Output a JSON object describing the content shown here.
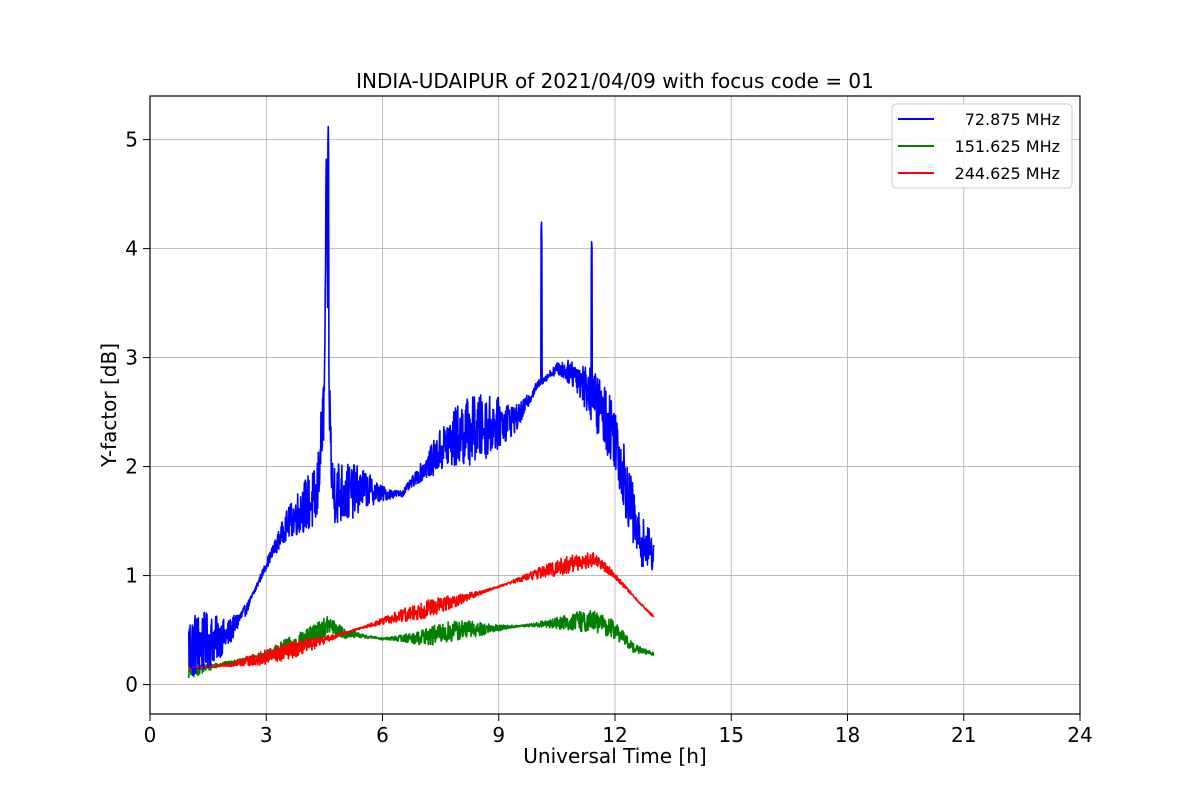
{
  "chart_data": {
    "type": "line",
    "title": "INDIA-UDAIPUR of 2021/04/09 with focus code = 01",
    "xlabel": "Universal Time [h]",
    "ylabel": "Y-factor [dB]",
    "xlim": [
      0,
      24
    ],
    "ylim": [
      -0.27,
      5.4
    ],
    "xticks": [
      0,
      3,
      6,
      9,
      12,
      15,
      18,
      21,
      24
    ],
    "yticks": [
      0,
      1,
      2,
      3,
      4,
      5
    ],
    "grid": true,
    "legend_position": "top-right",
    "x_range_of_data": [
      1.0,
      13.0
    ],
    "series": [
      {
        "name": "72.875 MHz",
        "color": "#0000ff",
        "noise_amplitude": 0.32,
        "x": [
          1.0,
          1.5,
          2.0,
          2.5,
          3.0,
          3.5,
          4.0,
          4.3,
          4.5,
          4.55,
          4.6,
          4.7,
          5.0,
          5.5,
          6.0,
          6.5,
          7.0,
          7.5,
          8.0,
          8.5,
          9.0,
          9.5,
          10.0,
          10.5,
          11.0,
          11.5,
          12.0,
          12.3,
          12.6,
          13.0
        ],
        "y": [
          0.35,
          0.4,
          0.45,
          0.7,
          1.1,
          1.45,
          1.65,
          1.7,
          2.6,
          4.7,
          3.0,
          1.8,
          1.75,
          1.8,
          1.75,
          1.75,
          1.95,
          2.15,
          2.3,
          2.35,
          2.4,
          2.45,
          2.75,
          2.9,
          2.85,
          2.6,
          2.3,
          1.8,
          1.35,
          1.2
        ],
        "peaks": [
          {
            "x": 4.6,
            "y": 5.12
          },
          {
            "x": 10.1,
            "y": 4.3
          },
          {
            "x": 11.4,
            "y": 4.12
          }
        ]
      },
      {
        "name": "151.625 MHz",
        "color": "#008000",
        "noise_amplitude": 0.1,
        "x": [
          1.0,
          2.0,
          3.0,
          4.0,
          4.6,
          5.0,
          6.0,
          7.0,
          8.0,
          9.0,
          10.0,
          11.0,
          11.5,
          12.0,
          12.5,
          13.0
        ],
        "y": [
          0.12,
          0.2,
          0.27,
          0.4,
          0.55,
          0.47,
          0.42,
          0.43,
          0.5,
          0.52,
          0.55,
          0.58,
          0.58,
          0.5,
          0.33,
          0.28
        ]
      },
      {
        "name": "244.625 MHz",
        "color": "#ff0000",
        "noise_amplitude": 0.08,
        "x": [
          1.0,
          2.0,
          3.0,
          4.0,
          5.0,
          6.0,
          7.0,
          8.0,
          9.0,
          10.0,
          11.0,
          11.5,
          12.0,
          12.5,
          13.0
        ],
        "y": [
          0.15,
          0.18,
          0.25,
          0.35,
          0.47,
          0.58,
          0.68,
          0.78,
          0.9,
          1.02,
          1.12,
          1.15,
          1.0,
          0.8,
          0.62
        ]
      }
    ]
  }
}
